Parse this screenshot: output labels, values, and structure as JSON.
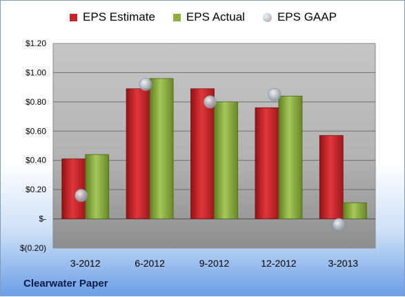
{
  "chart_data": {
    "type": "bar",
    "categories": [
      "3-2012",
      "6-2012",
      "9-2012",
      "12-2012",
      "3-2013"
    ],
    "series": [
      {
        "name": "EPS Estimate",
        "kind": "bar",
        "color": "#c0282d",
        "values": [
          0.41,
          0.89,
          0.89,
          0.76,
          0.57
        ]
      },
      {
        "name": "EPS Actual",
        "kind": "bar",
        "color": "#8db040",
        "values": [
          0.44,
          0.96,
          0.8,
          0.84,
          0.11
        ]
      },
      {
        "name": "EPS GAAP",
        "kind": "marker",
        "color": "#b9bec6",
        "values": [
          0.16,
          0.92,
          0.8,
          0.85,
          -0.04
        ]
      }
    ],
    "ylim": [
      -0.2,
      1.2
    ],
    "yticks": [
      -0.2,
      0,
      0.2,
      0.4,
      0.6,
      0.8,
      1.0,
      1.2
    ],
    "ytick_labels": [
      "$(0.20)",
      "$-",
      "$0.20",
      "$0.40",
      "$0.60",
      "$0.80",
      "$1.00",
      "$1.20"
    ],
    "grid": true,
    "legend_position": "top",
    "footer": "Clearwater Paper"
  }
}
